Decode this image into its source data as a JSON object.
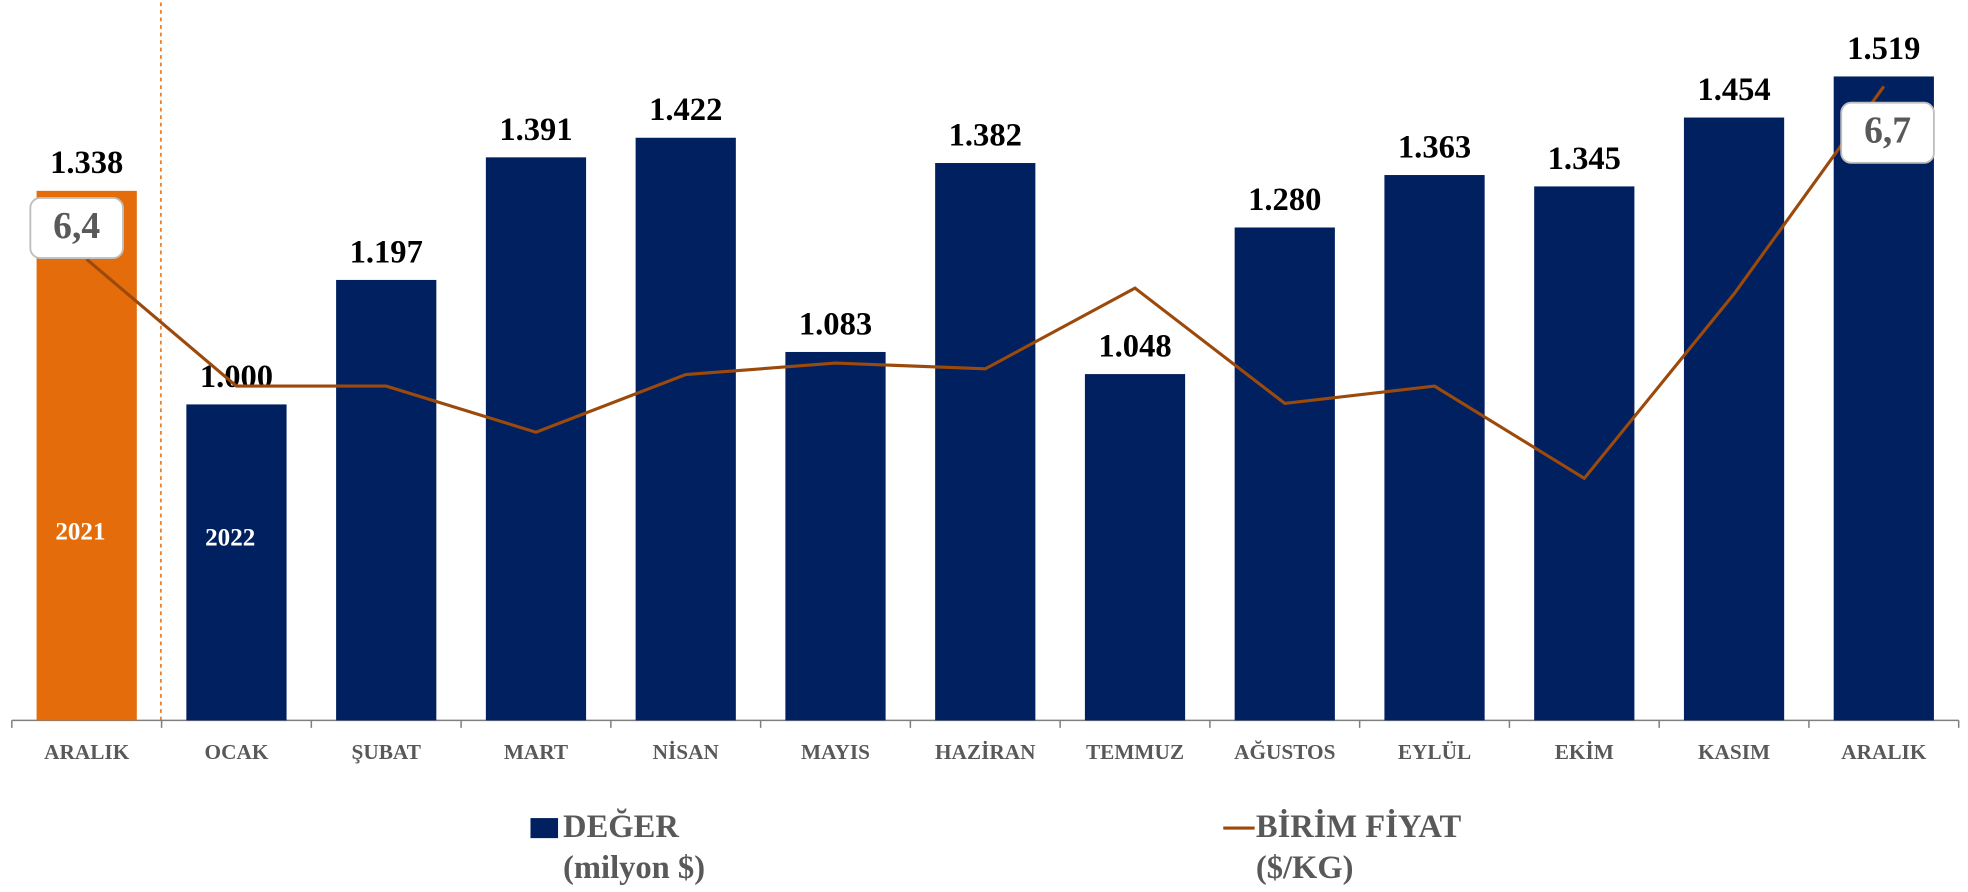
{
  "chart_data": {
    "type": "bar",
    "categories": [
      "ARALIK",
      "OCAK",
      "ŞUBAT",
      "MART",
      "NİSAN",
      "MAYIS",
      "HAZİRAN",
      "TEMMUZ",
      "AĞUSTOS",
      "EYLÜL",
      "EKİM",
      "KASIM",
      "ARALIK"
    ],
    "year_labels": [
      "2021",
      "2022"
    ],
    "series": [
      {
        "name": "DEĞER",
        "unit": "(milyon $)",
        "type": "bar",
        "color": "#002060",
        "colors": [
          "#e46c0a",
          "#002060",
          "#002060",
          "#002060",
          "#002060",
          "#002060",
          "#002060",
          "#002060",
          "#002060",
          "#002060",
          "#002060",
          "#002060",
          "#002060"
        ],
        "values": [
          1338,
          1000,
          1197,
          1391,
          1422,
          1083,
          1382,
          1048,
          1280,
          1363,
          1345,
          1454,
          1519
        ],
        "value_labels": [
          "1.338",
          "1.000",
          "1.197",
          "1.391",
          "1.422",
          "1.083",
          "1.382",
          "1.048",
          "1.280",
          "1.363",
          "1.345",
          "1.454",
          "1.519"
        ]
      },
      {
        "name": "BİRİM FİYAT",
        "unit": "($/KG)",
        "type": "line",
        "axis": "y2",
        "color": "#9c4a0c",
        "values": [
          6.4,
          6.18,
          6.18,
          6.1,
          6.2,
          6.22,
          6.21,
          6.35,
          6.15,
          6.18,
          6.02,
          6.34,
          6.7
        ],
        "value_labels": [
          "6,4",
          null,
          null,
          null,
          null,
          null,
          null,
          null,
          null,
          null,
          null,
          null,
          "6,7"
        ]
      }
    ],
    "ylim": [
      500,
      1640
    ],
    "y2lim": [
      5.6,
      6.85
    ],
    "grid": false
  }
}
